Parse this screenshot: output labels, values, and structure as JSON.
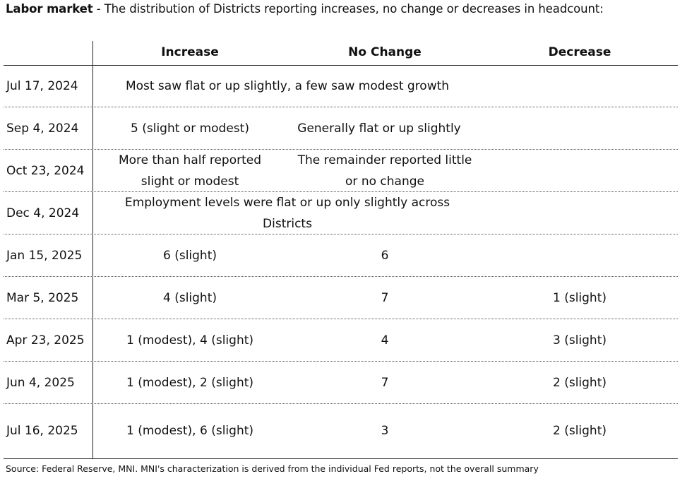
{
  "title": {
    "bold": "Labor market",
    "rest": " - The distribution of Districts reporting increases, no change or decreases in headcount:"
  },
  "table": {
    "headers": [
      "Increase",
      "No Change",
      "Decrease"
    ],
    "rows": [
      {
        "date": "Jul 17, 2024",
        "span": "Most saw flat or up slightly, a few saw modest growth"
      },
      {
        "date": "Sep 4, 2024",
        "increase": "5 (slight or modest)",
        "no_change": "Generally flat or up slightly",
        "decrease": ""
      },
      {
        "date": "Oct 23, 2024",
        "increase_line1": "More than half reported",
        "increase_line2": "slight or modest",
        "no_change_line1": "The remainder reported little",
        "no_change_line2": "or no change",
        "decrease": ""
      },
      {
        "date": "Dec 4, 2024",
        "span_line1": "Employment levels were flat or up only slightly across",
        "span_line2": "Districts"
      },
      {
        "date": "Jan 15, 2025",
        "increase": "6 (slight)",
        "no_change": "6",
        "decrease": ""
      },
      {
        "date": "Mar 5, 2025",
        "increase": "4 (slight)",
        "no_change": "7",
        "decrease": "1 (slight)"
      },
      {
        "date": "Apr 23, 2025",
        "increase": "1 (modest), 4 (slight)",
        "no_change": "4",
        "decrease": "3 (slight)"
      },
      {
        "date": "Jun 4, 2025",
        "increase": "1 (modest), 2 (slight)",
        "no_change": "7",
        "decrease": "2 (slight)"
      },
      {
        "date": "Jul 16, 2025",
        "increase": "1 (modest), 6 (slight)",
        "no_change": "3",
        "decrease": "2 (slight)"
      }
    ]
  },
  "source": "Source: Federal Reserve, MNI. MNI's characterization is derived from the individual Fed reports, not the overall summary"
}
